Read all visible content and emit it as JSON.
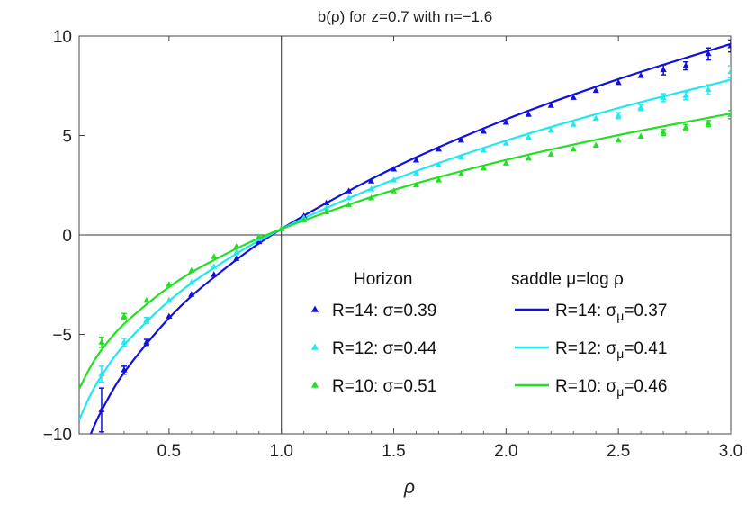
{
  "chart_data": {
    "type": "scatter",
    "title": "b(ρ) for z=0.7 with n=−1.6",
    "xlabel": "ρ",
    "ylabel": "",
    "xlim": [
      0.1,
      3.0
    ],
    "ylim": [
      -10,
      10
    ],
    "xticks": [
      "0.5",
      "1.0",
      "1.5",
      "2.0",
      "2.5",
      "3.0"
    ],
    "xtick_values": [
      0.5,
      1.0,
      1.5,
      2.0,
      2.5,
      3.0
    ],
    "yticks": [
      "−10",
      "−5",
      "0",
      "5",
      "10"
    ],
    "ytick_values": [
      -10,
      -5,
      0,
      5,
      10
    ],
    "legend": {
      "placement": "bottom-right",
      "points_heading": "Horizon",
      "lines_heading": "saddle μ=log ρ"
    },
    "points_x": [
      0.2,
      0.3,
      0.4,
      0.5,
      0.6,
      0.7,
      0.8,
      0.9,
      1.0,
      1.1,
      1.2,
      1.3,
      1.4,
      1.5,
      1.6,
      1.7,
      1.8,
      1.9,
      2.0,
      2.1,
      2.2,
      2.3,
      2.4,
      2.5,
      2.6,
      2.7,
      2.8,
      2.9,
      3.0
    ],
    "point_series": [
      {
        "name": "R=14: σ=0.39",
        "color": "#1010e0",
        "y": [
          -8.8,
          -6.8,
          -5.4,
          -4.1,
          -3.0,
          -2.0,
          -1.2,
          -0.35,
          0.3,
          0.95,
          1.6,
          2.2,
          2.7,
          3.3,
          3.75,
          4.3,
          4.75,
          5.2,
          5.65,
          6.05,
          6.5,
          6.9,
          7.25,
          7.65,
          8.0,
          8.3,
          8.5,
          9.1,
          9.5
        ],
        "err": [
          1.1,
          0.2,
          0.15,
          0.1,
          0.1,
          0.1,
          0.1,
          0.1,
          0.05,
          0.05,
          0.05,
          0.05,
          0.05,
          0.05,
          0.05,
          0.05,
          0.05,
          0.05,
          0.05,
          0.05,
          0.05,
          0.1,
          0.1,
          0.1,
          0.1,
          0.25,
          0.2,
          0.3,
          0.3
        ]
      },
      {
        "name": "R=12: σ=0.44",
        "color": "#20e8f0",
        "y": [
          -7.0,
          -5.4,
          -4.3,
          -3.3,
          -2.4,
          -1.6,
          -0.9,
          -0.2,
          0.3,
          0.85,
          1.35,
          1.85,
          2.3,
          2.75,
          3.1,
          3.5,
          3.9,
          4.25,
          4.6,
          4.9,
          5.25,
          5.55,
          5.85,
          6.0,
          6.4,
          6.9,
          7.0,
          7.3,
          8.2
        ],
        "err": [
          0.4,
          0.2,
          0.15,
          0.1,
          0.1,
          0.1,
          0.1,
          0.1,
          0.05,
          0.05,
          0.05,
          0.05,
          0.05,
          0.05,
          0.05,
          0.05,
          0.05,
          0.05,
          0.05,
          0.05,
          0.1,
          0.1,
          0.1,
          0.15,
          0.15,
          0.2,
          0.2,
          0.25,
          0.3
        ]
      },
      {
        "name": "R=10: σ=0.51",
        "color": "#20e020",
        "y": [
          -5.4,
          -4.1,
          -3.3,
          -2.5,
          -1.8,
          -1.1,
          -0.6,
          -0.1,
          0.3,
          0.75,
          1.15,
          1.5,
          1.85,
          2.2,
          2.5,
          2.75,
          3.05,
          3.35,
          3.6,
          3.85,
          4.05,
          4.3,
          4.5,
          4.75,
          4.95,
          5.15,
          5.4,
          5.6,
          6.05
        ],
        "err": [
          0.25,
          0.15,
          0.1,
          0.1,
          0.1,
          0.1,
          0.1,
          0.05,
          0.05,
          0.05,
          0.05,
          0.05,
          0.05,
          0.05,
          0.05,
          0.05,
          0.05,
          0.05,
          0.05,
          0.05,
          0.1,
          0.1,
          0.1,
          0.1,
          0.1,
          0.15,
          0.15,
          0.15,
          0.2
        ]
      }
    ],
    "lines_x": [
      0.1,
      0.15,
      0.2,
      0.3,
      0.5,
      0.7,
      1.0,
      1.5,
      2.0,
      2.5,
      3.0
    ],
    "line_series": [
      {
        "name_prefix": "R=14: σ",
        "name_sub": "μ",
        "name_suffix": "=0.37",
        "color": "#1010e0",
        "y": [
          -11.6,
          -10.05,
          -8.83,
          -6.92,
          -4.18,
          -2.13,
          0.3,
          3.37,
          5.81,
          7.83,
          9.6
        ]
      },
      {
        "name_prefix": "R=12: σ",
        "name_sub": "μ",
        "name_suffix": "=0.41",
        "color": "#20e8f0",
        "y": [
          -9.3,
          -8.05,
          -7.07,
          -5.53,
          -3.32,
          -1.66,
          0.3,
          2.78,
          4.74,
          6.38,
          7.8
        ]
      },
      {
        "name_prefix": "R=10: σ",
        "name_sub": "μ",
        "name_suffix": "=0.46",
        "color": "#20e020",
        "y": [
          -7.74,
          -6.64,
          -5.78,
          -4.47,
          -2.62,
          -1.26,
          0.3,
          2.26,
          3.77,
          5.02,
          6.1
        ]
      }
    ]
  }
}
